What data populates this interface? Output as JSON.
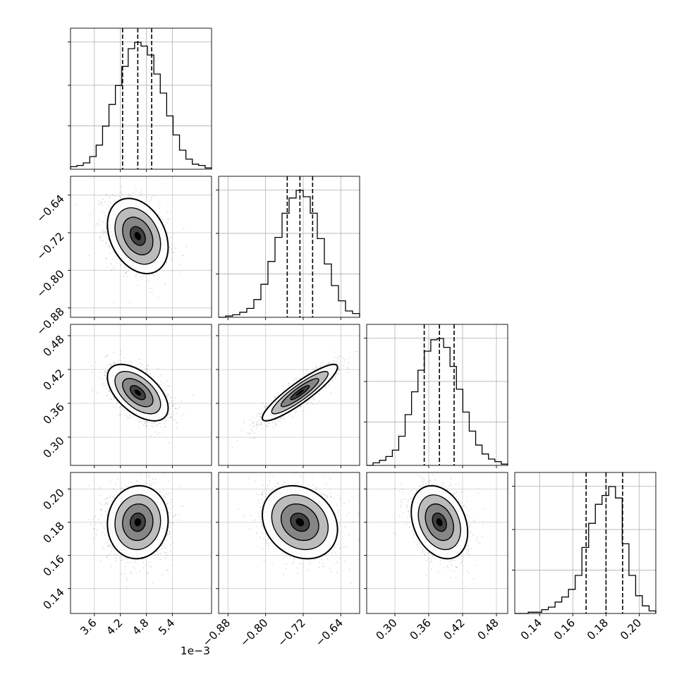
{
  "chart_data": {
    "type": "corner",
    "offset_text": "1e−3",
    "parameters": [
      {
        "id": "p1",
        "range": [
          3.05,
          6.3
        ],
        "ticks": [
          3.6,
          4.2,
          4.8,
          5.4
        ],
        "tick_labels": [
          "3.6",
          "4.2",
          "4.8",
          "5.4"
        ],
        "quantiles": [
          4.25,
          4.6,
          4.92
        ],
        "hist": [
          0.02,
          0.03,
          0.05,
          0.1,
          0.19,
          0.34,
          0.51,
          0.66,
          0.81,
          0.95,
          1.0,
          0.97,
          0.9,
          0.75,
          0.6,
          0.42,
          0.27,
          0.15,
          0.08,
          0.04,
          0.03,
          0.01
        ]
      },
      {
        "id": "p2",
        "range": [
          -0.9,
          -0.6
        ],
        "ticks": [
          -0.88,
          -0.8,
          -0.72,
          -0.64
        ],
        "tick_labels": [
          "−0.88",
          "−0.80",
          "−0.72",
          "−0.64"
        ],
        "quantiles": [
          -0.754,
          -0.727,
          -0.7
        ],
        "hist": [
          0.0,
          0.01,
          0.02,
          0.04,
          0.07,
          0.14,
          0.26,
          0.44,
          0.63,
          0.82,
          0.94,
          1.0,
          0.95,
          0.82,
          0.62,
          0.42,
          0.25,
          0.13,
          0.05,
          0.03
        ]
      },
      {
        "id": "p3",
        "range": [
          0.25,
          0.5
        ],
        "ticks": [
          0.3,
          0.36,
          0.42,
          0.48
        ],
        "tick_labels": [
          "0.30",
          "0.36",
          "0.42",
          "0.48"
        ],
        "quantiles": [
          0.352,
          0.379,
          0.405
        ],
        "hist": [
          0.0,
          0.02,
          0.04,
          0.07,
          0.12,
          0.23,
          0.4,
          0.58,
          0.75,
          0.9,
          0.99,
          1.0,
          0.93,
          0.78,
          0.6,
          0.42,
          0.27,
          0.16,
          0.09,
          0.05,
          0.03,
          0.01
        ]
      },
      {
        "id": "p4",
        "range": [
          0.125,
          0.21
        ],
        "ticks": [
          0.14,
          0.16,
          0.18,
          0.2
        ],
        "tick_labels": [
          "0.14",
          "0.16",
          "0.18",
          "0.20"
        ],
        "quantiles": [
          0.168,
          0.18,
          0.19
        ],
        "hist": [
          0.0,
          0.0,
          0.01,
          0.01,
          0.03,
          0.05,
          0.09,
          0.13,
          0.19,
          0.3,
          0.52,
          0.71,
          0.86,
          0.93,
          1.0,
          0.91,
          0.55,
          0.3,
          0.14,
          0.06,
          0.02
        ]
      }
    ],
    "correlations": {
      "1-0": -0.3,
      "2-0": -0.55,
      "2-1": 0.9,
      "3-0": 0.05,
      "3-1": -0.2,
      "3-2": -0.28
    },
    "stds": [
      0.35,
      0.04,
      0.025,
      0.011
    ],
    "means": [
      4.6,
      -0.727,
      0.379,
      0.18
    ],
    "x_axis_labels": [
      "",
      "",
      "",
      ""
    ],
    "y_axis_labels": [
      "",
      "",
      "",
      ""
    ],
    "grid": true
  }
}
